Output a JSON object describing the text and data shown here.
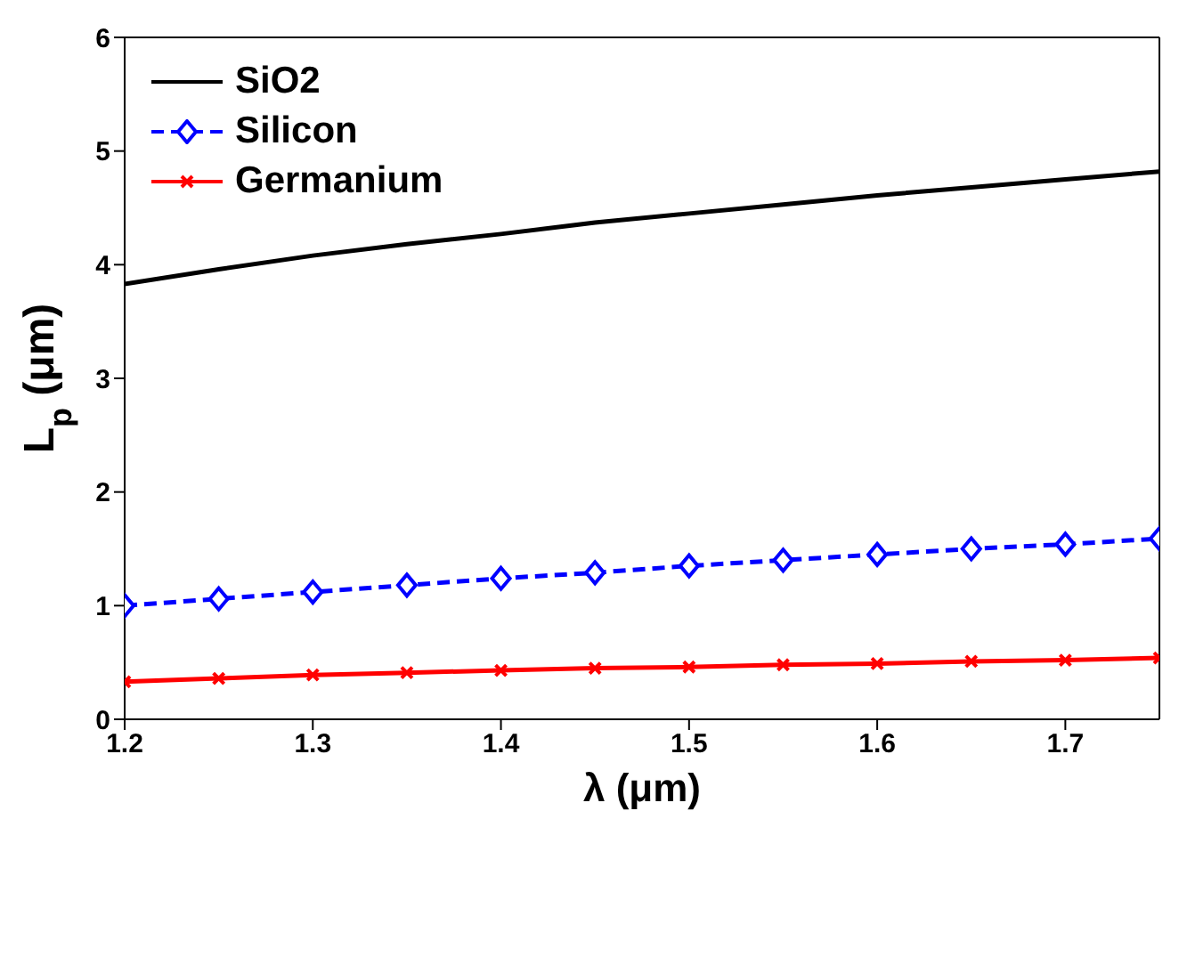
{
  "chart_data": {
    "type": "line",
    "xlabel": "λ (μm)",
    "ylabel": "L$_{p}$ (μm)",
    "x": [
      1.2,
      1.25,
      1.3,
      1.35,
      1.4,
      1.45,
      1.5,
      1.55,
      1.6,
      1.65,
      1.7,
      1.75
    ],
    "series": [
      {
        "name": "SiO2",
        "color": "#000000",
        "marker": "none",
        "line_style": "solid",
        "values": [
          3.83,
          3.96,
          4.08,
          4.18,
          4.27,
          4.37,
          4.45,
          4.53,
          4.61,
          4.68,
          4.75,
          4.82
        ]
      },
      {
        "name": "Silicon",
        "color": "#0000ff",
        "marker": "diamond",
        "line_style": "dashed",
        "values": [
          1.0,
          1.06,
          1.12,
          1.18,
          1.24,
          1.29,
          1.35,
          1.4,
          1.45,
          1.5,
          1.54,
          1.59
        ]
      },
      {
        "name": "Germanium",
        "color": "#ff0000",
        "marker": "cross",
        "line_style": "solid",
        "values": [
          0.33,
          0.36,
          0.39,
          0.41,
          0.43,
          0.45,
          0.46,
          0.48,
          0.49,
          0.51,
          0.52,
          0.54
        ]
      }
    ],
    "xlim": [
      1.2,
      1.75
    ],
    "xticks": [
      1.2,
      1.3,
      1.4,
      1.5,
      1.6,
      1.7
    ],
    "ylim": [
      0,
      6
    ],
    "yticks": [
      0,
      1,
      2,
      3,
      4,
      5,
      6
    ],
    "grid": false,
    "legend": "top left"
  }
}
